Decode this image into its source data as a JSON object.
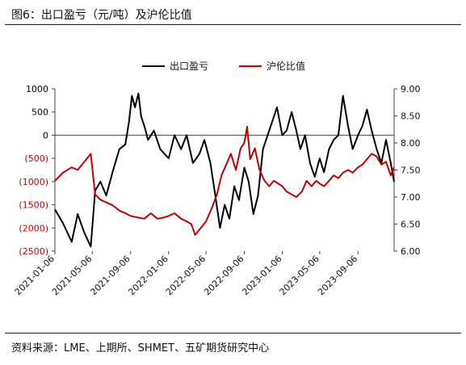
{
  "header": {
    "title": "图6：出口盈亏（元/吨）及沪伦比值"
  },
  "footer": {
    "source": "资料来源：LME、上期所、SHMET、五矿期货研究中心"
  },
  "colors": {
    "export_pnl": "#000000",
    "ratio": "#c00000",
    "axis_negative_label": "#c00000",
    "axis_positive_label": "#000000"
  },
  "chart_data": {
    "type": "line",
    "title": "",
    "legend_placement": "top-center",
    "grid": false,
    "y_left": {
      "lim": [
        -2500,
        1000
      ],
      "ticks": [
        1000,
        500,
        0,
        -500,
        -1000,
        -1500,
        -2000,
        -2500
      ],
      "tick_labels": [
        "1000",
        "500",
        "0",
        "(500)",
        "(1000)",
        "(1500)",
        "(2000)",
        "(2500)"
      ]
    },
    "y_right": {
      "lim": [
        6.0,
        9.0
      ],
      "ticks": [
        9.0,
        8.5,
        8.0,
        7.5,
        7.0,
        6.5,
        6.0
      ],
      "tick_labels": [
        "9.00",
        "8.50",
        "8.00",
        "7.50",
        "7.00",
        "6.50",
        "6.00"
      ]
    },
    "x_ticks": [
      "2021-01-06",
      "2021-05-06",
      "2021-09-06",
      "2022-01-06",
      "2022-05-06",
      "2022-09-06",
      "2023-01-06",
      "2023-05-06",
      "2023-09-06"
    ],
    "x_range": [
      "2021-01-06",
      "2023-12-31"
    ],
    "series": [
      {
        "name": "出口盈亏",
        "axis": "left",
        "color": "#000000",
        "points": [
          [
            "2021-01-06",
            -1600
          ],
          [
            "2021-02-01",
            -1900
          ],
          [
            "2021-03-01",
            -2300
          ],
          [
            "2021-03-20",
            -1700
          ],
          [
            "2021-04-10",
            -2100
          ],
          [
            "2021-05-01",
            -2400
          ],
          [
            "2021-05-15",
            -1200
          ],
          [
            "2021-06-01",
            -1000
          ],
          [
            "2021-06-20",
            -1300
          ],
          [
            "2021-07-10",
            -800
          ],
          [
            "2021-08-01",
            -300
          ],
          [
            "2021-08-20",
            -200
          ],
          [
            "2021-09-01",
            300
          ],
          [
            "2021-09-10",
            850
          ],
          [
            "2021-09-20",
            600
          ],
          [
            "2021-10-01",
            900
          ],
          [
            "2021-10-10",
            400
          ],
          [
            "2021-10-20",
            200
          ],
          [
            "2021-11-01",
            -100
          ],
          [
            "2021-11-20",
            100
          ],
          [
            "2021-12-10",
            -300
          ],
          [
            "2022-01-06",
            -500
          ],
          [
            "2022-01-25",
            0
          ],
          [
            "2022-02-15",
            -300
          ],
          [
            "2022-03-05",
            0
          ],
          [
            "2022-03-25",
            -600
          ],
          [
            "2022-04-15",
            -400
          ],
          [
            "2022-05-01",
            -100
          ],
          [
            "2022-05-20",
            -600
          ],
          [
            "2022-06-05",
            -1300
          ],
          [
            "2022-06-20",
            -2000
          ],
          [
            "2022-07-05",
            -1500
          ],
          [
            "2022-07-20",
            -1800
          ],
          [
            "2022-08-05",
            -1100
          ],
          [
            "2022-08-20",
            -1400
          ],
          [
            "2022-09-06",
            -700
          ],
          [
            "2022-09-20",
            -1000
          ],
          [
            "2022-10-05",
            -1700
          ],
          [
            "2022-10-20",
            -1300
          ],
          [
            "2022-11-05",
            -300
          ],
          [
            "2022-11-20",
            0
          ],
          [
            "2022-12-05",
            300
          ],
          [
            "2022-12-20",
            600
          ],
          [
            "2023-01-06",
            0
          ],
          [
            "2023-01-20",
            100
          ],
          [
            "2023-02-05",
            500
          ],
          [
            "2023-02-20",
            100
          ],
          [
            "2023-03-05",
            -300
          ],
          [
            "2023-03-20",
            0
          ],
          [
            "2023-04-05",
            -600
          ],
          [
            "2023-04-20",
            -900
          ],
          [
            "2023-05-06",
            -500
          ],
          [
            "2023-05-20",
            -800
          ],
          [
            "2023-06-05",
            -300
          ],
          [
            "2023-06-20",
            -100
          ],
          [
            "2023-07-05",
            0
          ],
          [
            "2023-07-20",
            850
          ],
          [
            "2023-08-05",
            200
          ],
          [
            "2023-08-20",
            -300
          ],
          [
            "2023-09-06",
            0
          ],
          [
            "2023-09-20",
            200
          ],
          [
            "2023-10-05",
            550
          ],
          [
            "2023-10-20",
            100
          ],
          [
            "2023-11-05",
            -300
          ],
          [
            "2023-11-20",
            -600
          ],
          [
            "2023-12-05",
            -100
          ],
          [
            "2023-12-20",
            -600
          ],
          [
            "2023-12-31",
            -1000
          ]
        ]
      },
      {
        "name": "沪伦比值",
        "axis": "right",
        "color": "#c00000",
        "points": [
          [
            "2021-01-06",
            7.3
          ],
          [
            "2021-02-01",
            7.45
          ],
          [
            "2021-03-01",
            7.55
          ],
          [
            "2021-03-20",
            7.5
          ],
          [
            "2021-04-10",
            7.65
          ],
          [
            "2021-05-01",
            7.8
          ],
          [
            "2021-05-15",
            7.05
          ],
          [
            "2021-06-01",
            6.95
          ],
          [
            "2021-06-20",
            6.9
          ],
          [
            "2021-07-10",
            6.85
          ],
          [
            "2021-08-01",
            6.75
          ],
          [
            "2021-08-20",
            6.7
          ],
          [
            "2021-09-06",
            6.65
          ],
          [
            "2021-10-01",
            6.62
          ],
          [
            "2021-10-20",
            6.6
          ],
          [
            "2021-11-10",
            6.7
          ],
          [
            "2021-12-01",
            6.6
          ],
          [
            "2021-12-20",
            6.62
          ],
          [
            "2022-01-06",
            6.65
          ],
          [
            "2022-01-25",
            6.7
          ],
          [
            "2022-02-15",
            6.6
          ],
          [
            "2022-03-05",
            6.55
          ],
          [
            "2022-03-20",
            6.5
          ],
          [
            "2022-04-01",
            6.3
          ],
          [
            "2022-04-15",
            6.4
          ],
          [
            "2022-05-06",
            6.55
          ],
          [
            "2022-05-25",
            6.8
          ],
          [
            "2022-06-10",
            7.05
          ],
          [
            "2022-06-25",
            7.4
          ],
          [
            "2022-07-10",
            7.6
          ],
          [
            "2022-07-25",
            7.8
          ],
          [
            "2022-08-10",
            7.5
          ],
          [
            "2022-08-25",
            7.9
          ],
          [
            "2022-09-06",
            8.0
          ],
          [
            "2022-09-15",
            8.3
          ],
          [
            "2022-09-25",
            7.7
          ],
          [
            "2022-10-10",
            7.9
          ],
          [
            "2022-10-25",
            7.5
          ],
          [
            "2022-11-10",
            7.3
          ],
          [
            "2022-11-25",
            7.2
          ],
          [
            "2022-12-10",
            7.3
          ],
          [
            "2023-01-06",
            7.2
          ],
          [
            "2023-01-20",
            7.1
          ],
          [
            "2023-02-05",
            7.05
          ],
          [
            "2023-02-20",
            7.0
          ],
          [
            "2023-03-10",
            7.1
          ],
          [
            "2023-03-25",
            7.3
          ],
          [
            "2023-04-10",
            7.2
          ],
          [
            "2023-04-25",
            7.3
          ],
          [
            "2023-05-06",
            7.25
          ],
          [
            "2023-05-20",
            7.2
          ],
          [
            "2023-06-05",
            7.3
          ],
          [
            "2023-06-20",
            7.4
          ],
          [
            "2023-07-05",
            7.35
          ],
          [
            "2023-07-20",
            7.45
          ],
          [
            "2023-08-05",
            7.5
          ],
          [
            "2023-08-20",
            7.45
          ],
          [
            "2023-09-06",
            7.55
          ],
          [
            "2023-09-20",
            7.6
          ],
          [
            "2023-10-05",
            7.7
          ],
          [
            "2023-10-20",
            7.8
          ],
          [
            "2023-11-05",
            7.75
          ],
          [
            "2023-11-20",
            7.6
          ],
          [
            "2023-12-05",
            7.65
          ],
          [
            "2023-12-20",
            7.4
          ],
          [
            "2023-12-31",
            7.55
          ]
        ]
      }
    ]
  }
}
